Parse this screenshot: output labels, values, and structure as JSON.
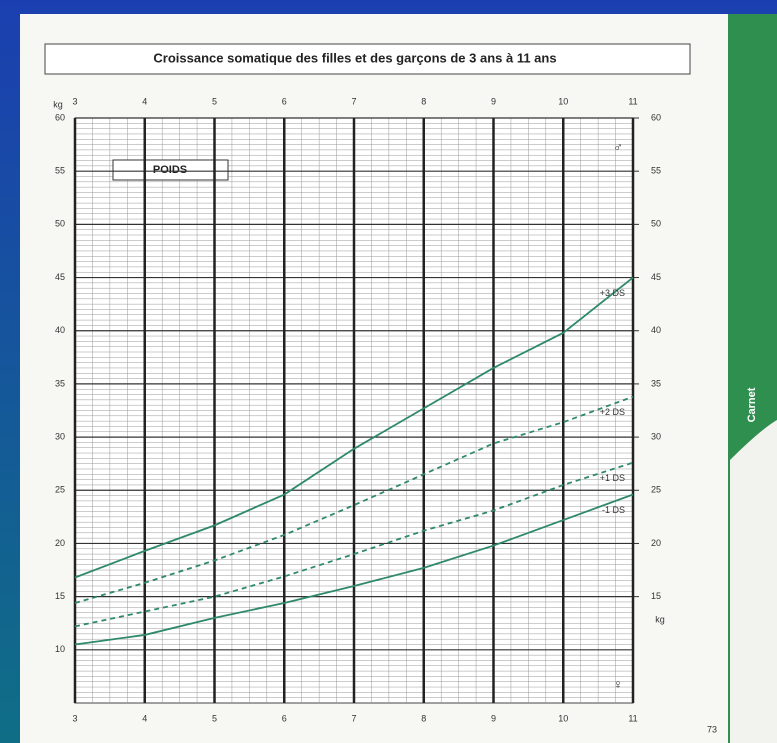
{
  "chart_data": {
    "type": "line",
    "title": "Croissance somatique des filles et des garçons de 3 ans à 11 ans",
    "panel_label": "POIDS",
    "y_unit": "kg",
    "symbol_top": "♂",
    "symbol_bottom": "♀",
    "tab_label": "Carnet",
    "page_number": "73",
    "x": [
      3,
      4,
      5,
      6,
      7,
      8,
      9,
      10,
      11
    ],
    "xlim": [
      3,
      11
    ],
    "xticks": [
      3,
      4,
      5,
      6,
      7,
      8,
      9,
      10,
      11
    ],
    "ylim": [
      5,
      60
    ],
    "yticks": [
      10,
      15,
      20,
      25,
      30,
      35,
      40,
      45,
      50,
      55,
      60
    ],
    "y2lim": [
      5,
      60
    ],
    "y2ticks": [
      15,
      20,
      25,
      30,
      35,
      40,
      45,
      50,
      55,
      60
    ],
    "grid": true,
    "series": [
      {
        "name": "+3 DS",
        "color": "#2e8a68",
        "dashed": false,
        "values": [
          16.8,
          19.3,
          21.7,
          24.6,
          28.9,
          32.7,
          36.5,
          39.8,
          45
        ]
      },
      {
        "name": "+2 DS",
        "color": "#2e8a68",
        "dashed": true,
        "values": [
          14.4,
          16.3,
          18.4,
          20.8,
          23.6,
          26.5,
          29.4,
          31.4,
          33.8
        ]
      },
      {
        "name": "+1 DS",
        "color": "#2e8a68",
        "dashed": true,
        "values": [
          12.2,
          13.6,
          15.0,
          16.9,
          19.0,
          21.2,
          23.1,
          25.5,
          27.6
        ]
      },
      {
        "name": "-1 DS",
        "color": "#2e8a68",
        "dashed": false,
        "values": [
          10.5,
          11.4,
          13.0,
          14.4,
          16.0,
          17.7,
          19.8,
          22.2,
          24.6
        ]
      }
    ]
  }
}
